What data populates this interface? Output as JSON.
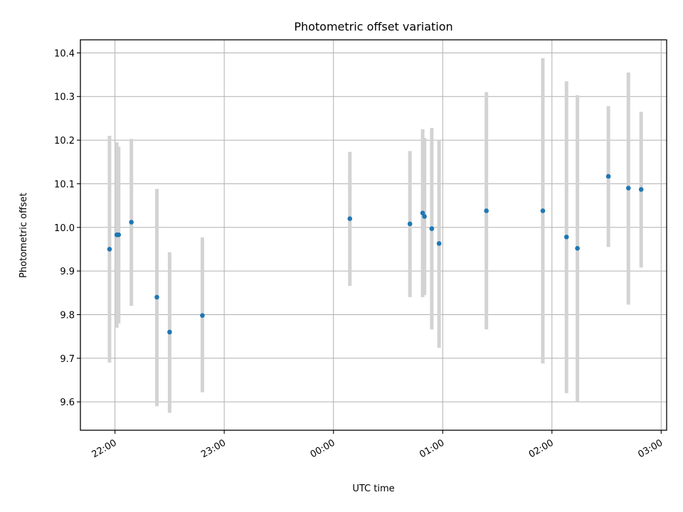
{
  "chart_data": {
    "type": "scatter",
    "title": "Photometric offset variation",
    "xlabel": "UTC time",
    "ylabel": "Photometric offset",
    "ylim": [
      9.535,
      10.43
    ],
    "xlim": [
      "21:41",
      "03:03"
    ],
    "grid": true,
    "legend": "none",
    "x_ticks": [
      "22:00",
      "23:00",
      "00:00",
      "01:00",
      "02:00",
      "03:00"
    ],
    "y_ticks": [
      "9.6",
      "9.7",
      "9.8",
      "9.9",
      "10.0",
      "10.1",
      "10.2",
      "10.3",
      "10.4"
    ],
    "series": [
      {
        "marker_color": "#1f77b4",
        "errorbar_color": "#d3d3d3",
        "points": [
          {
            "x": "21:57",
            "y": 9.95,
            "err_low": 9.69,
            "err_high": 10.21
          },
          {
            "x": "22:01",
            "y": 9.983,
            "err_low": 9.77,
            "err_high": 10.195
          },
          {
            "x": "22:02",
            "y": 9.983,
            "err_low": 9.78,
            "err_high": 10.185
          },
          {
            "x": "22:09",
            "y": 10.012,
            "err_low": 9.82,
            "err_high": 10.203
          },
          {
            "x": "22:23",
            "y": 9.84,
            "err_low": 9.59,
            "err_high": 10.088
          },
          {
            "x": "22:30",
            "y": 9.76,
            "err_low": 9.575,
            "err_high": 9.943
          },
          {
            "x": "22:48",
            "y": 9.798,
            "err_low": 9.622,
            "err_high": 9.977
          },
          {
            "x": "00:09",
            "y": 10.02,
            "err_low": 9.866,
            "err_high": 10.173
          },
          {
            "x": "00:42",
            "y": 10.008,
            "err_low": 9.84,
            "err_high": 10.175
          },
          {
            "x": "00:49",
            "y": 10.033,
            "err_low": 9.84,
            "err_high": 10.225
          },
          {
            "x": "00:50",
            "y": 10.025,
            "err_low": 9.845,
            "err_high": 10.205
          },
          {
            "x": "00:54",
            "y": 9.997,
            "err_low": 9.766,
            "err_high": 10.228
          },
          {
            "x": "00:58",
            "y": 9.963,
            "err_low": 9.724,
            "err_high": 10.2
          },
          {
            "x": "01:24",
            "y": 10.038,
            "err_low": 9.766,
            "err_high": 10.31
          },
          {
            "x": "01:55",
            "y": 10.038,
            "err_low": 9.688,
            "err_high": 10.388
          },
          {
            "x": "02:08",
            "y": 9.978,
            "err_low": 9.62,
            "err_high": 10.335
          },
          {
            "x": "02:14",
            "y": 9.952,
            "err_low": 9.6,
            "err_high": 10.303
          },
          {
            "x": "02:31",
            "y": 10.117,
            "err_low": 9.955,
            "err_high": 10.278
          },
          {
            "x": "02:42",
            "y": 10.09,
            "err_low": 9.823,
            "err_high": 10.355
          },
          {
            "x": "02:49",
            "y": 10.087,
            "err_low": 9.908,
            "err_high": 10.265
          }
        ]
      }
    ]
  }
}
